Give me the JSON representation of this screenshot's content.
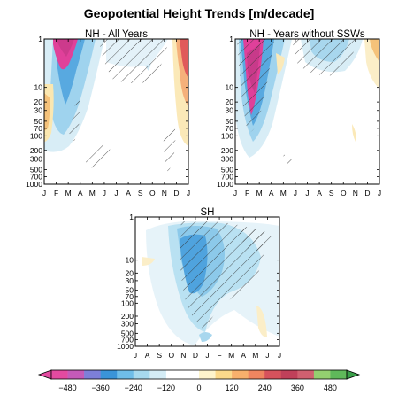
{
  "title": "Geopotential Height Trends [m/decade]",
  "colors": {
    "negative_strong": "#e0409a",
    "negative_mid": "#6fb6e6",
    "negative_weak": "#cfe8f4",
    "positive_weak": "#fbeec0",
    "positive_mid": "#f6a870",
    "positive_strong": "#d84a5a",
    "positive_extreme": "#7fc86a",
    "hatch": "#333333"
  },
  "chart_data": [
    {
      "type": "heatmap",
      "title": "NH - All Years",
      "x_months": [
        "J",
        "F",
        "M",
        "A",
        "M",
        "J",
        "J",
        "A",
        "S",
        "O",
        "N",
        "D",
        "J"
      ],
      "y_pressure_hpa": [
        "1",
        "10",
        "20",
        "30",
        "50",
        "70",
        "100",
        "200",
        "300",
        "500",
        "700",
        "1000"
      ],
      "y_scale": "log",
      "ylim": [
        1000,
        1
      ],
      "features": [
        {
          "kind": "negative_core",
          "months": [
            "F",
            "M"
          ],
          "pressure_top": 1,
          "pressure_bottom": 30,
          "peak": -480
        },
        {
          "kind": "negative_tongue",
          "months": [
            "F",
            "M",
            "A"
          ],
          "pressure_top": 30,
          "pressure_bottom": 150,
          "peak": -120
        },
        {
          "kind": "positive",
          "months": [
            "D",
            "J"
          ],
          "pressure_top": 1,
          "pressure_bottom": 100,
          "peak": 360
        },
        {
          "kind": "hatched_region",
          "months": [
            "A",
            "M",
            "J",
            "J",
            "A",
            "S",
            "O"
          ],
          "pressure_top": 1,
          "pressure_bottom": 15
        },
        {
          "kind": "hatched_region",
          "months": [
            "M",
            "J",
            "J"
          ],
          "pressure_top": 200,
          "pressure_bottom": 500
        },
        {
          "kind": "hatched_region",
          "months": [
            "N",
            "D"
          ],
          "pressure_top": 100,
          "pressure_bottom": 500
        }
      ]
    },
    {
      "type": "heatmap",
      "title": "NH - Years without SSWs",
      "x_months": [
        "J",
        "F",
        "M",
        "A",
        "M",
        "J",
        "J",
        "A",
        "S",
        "O",
        "N",
        "D",
        "J"
      ],
      "y_pressure_hpa": [
        "1",
        "10",
        "20",
        "30",
        "50",
        "70",
        "100",
        "200",
        "300",
        "500",
        "700",
        "1000"
      ],
      "y_scale": "log",
      "ylim": [
        1000,
        1
      ],
      "features": [
        {
          "kind": "negative_core",
          "months": [
            "F",
            "M"
          ],
          "pressure_top": 1,
          "pressure_bottom": 60,
          "peak": -480
        },
        {
          "kind": "negative_tongue",
          "months": [
            "F",
            "M",
            "A"
          ],
          "pressure_top": 60,
          "pressure_bottom": 200,
          "peak": -120
        },
        {
          "kind": "positive",
          "months": [
            "D",
            "J"
          ],
          "pressure_top": 1,
          "pressure_bottom": 20,
          "peak": 120
        },
        {
          "kind": "hatched_region",
          "months": [
            "J",
            "F",
            "M",
            "A"
          ],
          "pressure_top": 1,
          "pressure_bottom": 150
        },
        {
          "kind": "hatched_region",
          "months": [
            "J",
            "J",
            "A",
            "S",
            "O"
          ],
          "pressure_top": 1,
          "pressure_bottom": 15
        }
      ]
    },
    {
      "type": "heatmap",
      "title": "SH",
      "x_months": [
        "J",
        "A",
        "S",
        "O",
        "N",
        "D",
        "J",
        "F",
        "M",
        "A",
        "M",
        "J",
        "J"
      ],
      "y_pressure_hpa": [
        "1",
        "10",
        "20",
        "30",
        "50",
        "70",
        "100",
        "200",
        "300",
        "500",
        "700",
        "1000"
      ],
      "y_scale": "log",
      "ylim": [
        1000,
        1
      ],
      "features": [
        {
          "kind": "negative_core",
          "months": [
            "O",
            "N",
            "D"
          ],
          "pressure_top": 3,
          "pressure_bottom": 100,
          "peak": -240
        },
        {
          "kind": "negative_tongue",
          "months": [
            "N",
            "D",
            "J",
            "F",
            "M"
          ],
          "pressure_top": 100,
          "pressure_bottom": 1000,
          "peak": -120
        },
        {
          "kind": "hatched_region",
          "months": [
            "N",
            "D",
            "J",
            "F",
            "M",
            "A",
            "M"
          ],
          "pressure_top": 2,
          "pressure_bottom": 300
        },
        {
          "kind": "hatched_region",
          "months": [
            "J",
            "J"
          ],
          "pressure_top": 1,
          "pressure_bottom": 20
        }
      ]
    }
  ],
  "colorbar": {
    "ticks": [
      "−480",
      "−360",
      "−240",
      "−120",
      "0",
      "120",
      "240",
      "360",
      "480"
    ],
    "colors": [
      "#e34aa0",
      "#c45ab8",
      "#7d7fd8",
      "#3a94d8",
      "#6fbde8",
      "#a7d9ee",
      "#d4ecf5",
      "#ffffff",
      "#ffffff",
      "#fdf4cc",
      "#fbd98a",
      "#f8b06c",
      "#ef8560",
      "#d6525c",
      "#c0405a",
      "#d06070",
      "#94cf70",
      "#5fb85a"
    ]
  }
}
